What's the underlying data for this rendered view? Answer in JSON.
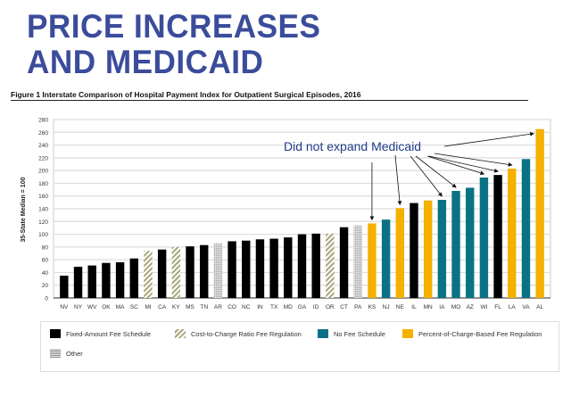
{
  "slide_title_line1": "PRICE INCREASES",
  "slide_title_line2": "AND MEDICAID",
  "annotation": "Did not expand Medicaid",
  "chart_data": {
    "type": "bar",
    "title": "Figure 1  Interstate Comparison of Hospital Payment Index for Outpatient Surgical Episodes, 2016",
    "ylabel": "35-State Median = 100",
    "xlabel": "",
    "ylim": [
      0,
      280
    ],
    "yticks": [
      0,
      20,
      40,
      60,
      80,
      100,
      120,
      140,
      160,
      180,
      200,
      220,
      240,
      260,
      280
    ],
    "grid": true,
    "legend_placement": "bottom",
    "categories": [
      "NV",
      "NY",
      "WV",
      "OK",
      "MA",
      "SC",
      "MI",
      "CA",
      "KY",
      "MS",
      "TN",
      "AR",
      "CO",
      "NC",
      "IN",
      "TX",
      "MD",
      "GA",
      "ID",
      "OR",
      "CT",
      "PA",
      "KS",
      "NJ",
      "NE",
      "IL",
      "MN",
      "IA",
      "MO",
      "AZ",
      "WI",
      "FL",
      "LA",
      "VA",
      "AL"
    ],
    "values": [
      35,
      49,
      51,
      55,
      56,
      62,
      74,
      76,
      80,
      81,
      83,
      86,
      89,
      90,
      92,
      93,
      95,
      100,
      101,
      101,
      111,
      114,
      117,
      123,
      141,
      149,
      153,
      154,
      168,
      173,
      189,
      193,
      203,
      218,
      265
    ],
    "groups": [
      "fixed",
      "fixed",
      "fixed",
      "fixed",
      "fixed",
      "fixed",
      "cost",
      "fixed",
      "cost",
      "fixed",
      "fixed",
      "other",
      "fixed",
      "fixed",
      "fixed",
      "fixed",
      "fixed",
      "fixed",
      "fixed",
      "cost",
      "fixed",
      "other",
      "percent",
      "nofee",
      "percent",
      "fixed",
      "percent",
      "nofee",
      "nofee",
      "nofee",
      "nofee",
      "fixed",
      "percent",
      "nofee",
      "percent"
    ],
    "legend": [
      {
        "key": "fixed",
        "label": "Fixed-Amount Fee Schedule",
        "color": "#000000"
      },
      {
        "key": "cost",
        "label": "Cost-to-Charge Ratio Fee Regulation",
        "color": "#a8a57a"
      },
      {
        "key": "nofee",
        "label": "No Fee Schedule",
        "color": "#0b7285"
      },
      {
        "key": "percent",
        "label": "Percent-of-Charge-Based Fee Regulation",
        "color": "#f5b000"
      },
      {
        "key": "other",
        "label": "Other",
        "color": "#b5b5b5"
      }
    ],
    "annotated_states": [
      "KS",
      "NE",
      "IA",
      "MO",
      "WI",
      "FL",
      "LA",
      "AL"
    ]
  }
}
